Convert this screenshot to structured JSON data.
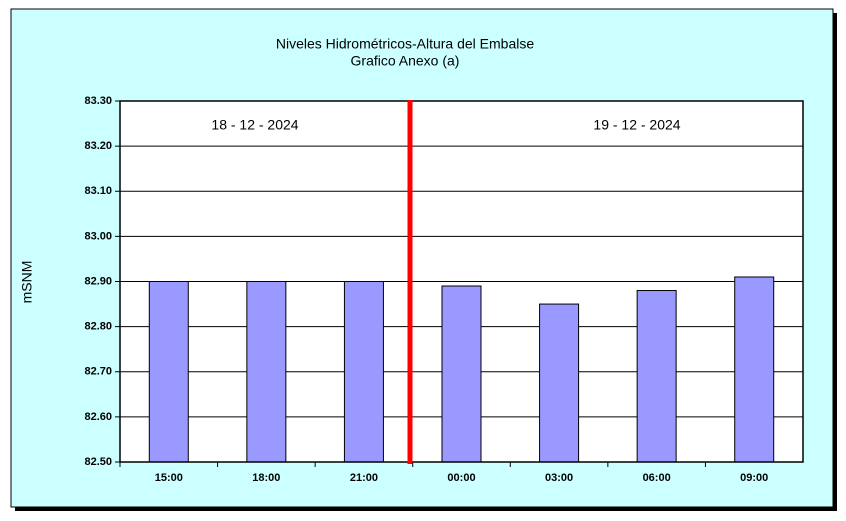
{
  "chart_data": {
    "type": "bar",
    "title": "Niveles Hidrométricos-Altura del Embalse",
    "subtitle": "Grafico Anexo (a)",
    "y_label": "mSNM",
    "annotations": [
      "18 - 12 - 2024",
      "19 - 12 - 2024"
    ],
    "categories": [
      "15:00",
      "18:00",
      "21:00",
      "00:00",
      "03:00",
      "06:00",
      "09:00"
    ],
    "values": [
      82.9,
      82.9,
      82.9,
      82.89,
      82.85,
      82.88,
      82.91
    ],
    "color": "#9999ff",
    "ylim": [
      82.5,
      83.3
    ],
    "yticks": [
      {
        "value": 82.5,
        "label": "82.50"
      },
      {
        "value": 82.6,
        "label": "82.60"
      },
      {
        "value": 82.7,
        "label": "82.70"
      },
      {
        "value": 82.8,
        "label": "82.80"
      },
      {
        "value": 82.9,
        "label": "82.90"
      },
      {
        "value": 83.0,
        "label": "83.00"
      },
      {
        "value": 83.1,
        "label": "83.10"
      },
      {
        "value": 83.2,
        "label": "83.20"
      },
      {
        "value": 83.3,
        "label": "83.30"
      }
    ],
    "grid": true
  }
}
